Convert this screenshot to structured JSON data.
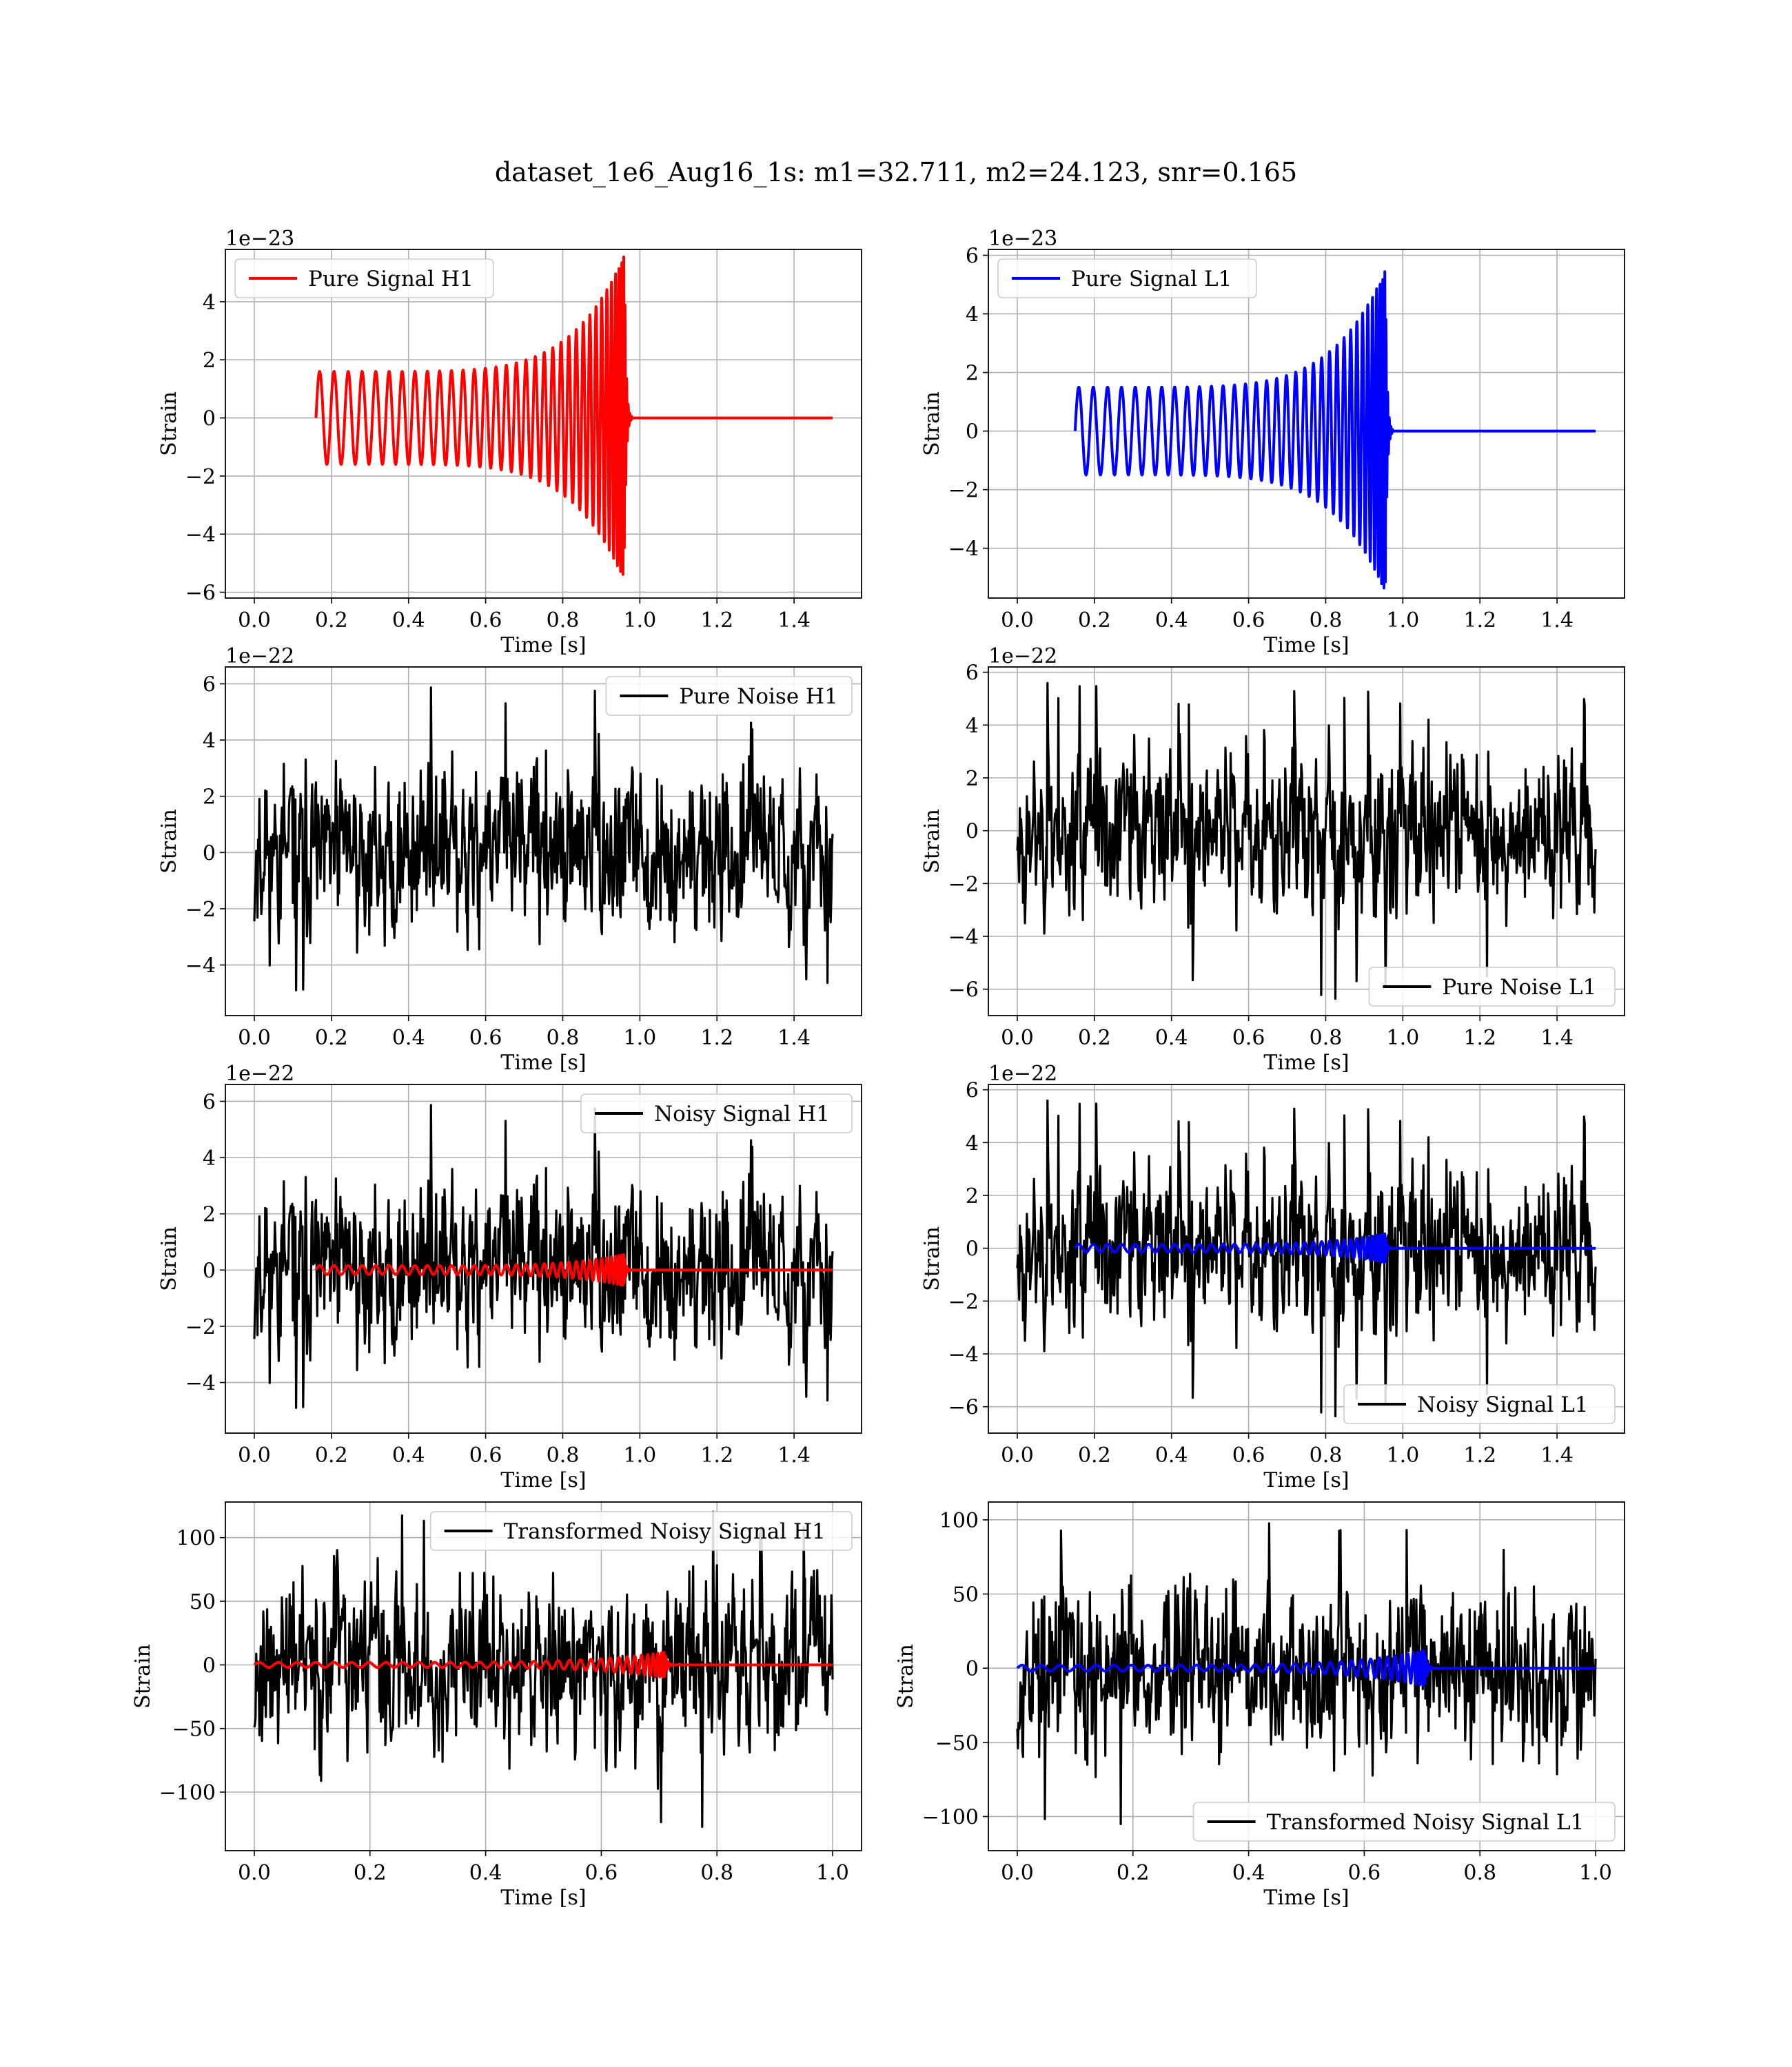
{
  "figure": {
    "title": "dataset_1e6_Aug16_1s: m1=32.711, m2=24.123, snr=0.165"
  },
  "chart_data": [
    {
      "type": "line",
      "panel": "pure-signal-h1",
      "xlabel": "Time [s]",
      "ylabel": "Strain",
      "offset_text": "1e−23",
      "xlim": [
        -0.075,
        1.575
      ],
      "ylim": [
        -6.2,
        5.8
      ],
      "xticks": [
        0.0,
        0.2,
        0.4,
        0.6,
        0.8,
        1.0,
        1.2,
        1.4
      ],
      "xtick_labels": [
        "0.0",
        "0.2",
        "0.4",
        "0.6",
        "0.8",
        "1.0",
        "1.2",
        "1.4"
      ],
      "yticks": [
        -6,
        -4,
        -2,
        0,
        2,
        4
      ],
      "ytick_labels": [
        "−6",
        "−4",
        "−2",
        "0",
        "2",
        "4"
      ],
      "grid": true,
      "legend_position": "upper left",
      "series": [
        {
          "name": "Pure Signal H1",
          "color": "#ff0000",
          "kind": "chirp",
          "t_start": 0.16,
          "t_merge": 0.96,
          "t_end": 1.5,
          "amp_start": 1.6,
          "amp_peak": 5.6,
          "cycles": 34
        }
      ]
    },
    {
      "type": "line",
      "panel": "pure-signal-l1",
      "xlabel": "Time [s]",
      "ylabel": "Strain",
      "offset_text": "1e−23",
      "xlim": [
        -0.075,
        1.575
      ],
      "ylim": [
        -5.7,
        6.2
      ],
      "xticks": [
        0.0,
        0.2,
        0.4,
        0.6,
        0.8,
        1.0,
        1.2,
        1.4
      ],
      "xtick_labels": [
        "0.0",
        "0.2",
        "0.4",
        "0.6",
        "0.8",
        "1.0",
        "1.2",
        "1.4"
      ],
      "yticks": [
        -4,
        -2,
        0,
        2,
        4,
        6
      ],
      "ytick_labels": [
        "−4",
        "−2",
        "0",
        "2",
        "4",
        "6"
      ],
      "grid": true,
      "legend_position": "upper left",
      "series": [
        {
          "name": "Pure Signal L1",
          "color": "#0000ff",
          "kind": "chirp",
          "t_start": 0.15,
          "t_merge": 0.955,
          "t_end": 1.5,
          "amp_start": 1.5,
          "amp_peak": 5.5,
          "cycles": 34
        }
      ]
    },
    {
      "type": "line",
      "panel": "pure-noise-h1",
      "xlabel": "Time [s]",
      "ylabel": "Strain",
      "offset_text": "1e−22",
      "xlim": [
        -0.075,
        1.575
      ],
      "ylim": [
        -5.8,
        6.6
      ],
      "xticks": [
        0.0,
        0.2,
        0.4,
        0.6,
        0.8,
        1.0,
        1.2,
        1.4
      ],
      "xtick_labels": [
        "0.0",
        "0.2",
        "0.4",
        "0.6",
        "0.8",
        "1.0",
        "1.2",
        "1.4"
      ],
      "yticks": [
        -4,
        -2,
        0,
        2,
        4,
        6
      ],
      "ytick_labels": [
        "−4",
        "−2",
        "0",
        "2",
        "4",
        "6"
      ],
      "grid": true,
      "legend_position": "upper right",
      "series": [
        {
          "name": "Pure Noise H1",
          "color": "#000000",
          "kind": "noise",
          "t_start": 0.0,
          "t_end": 1.5,
          "noise_range": [
            -5.2,
            6.0
          ],
          "points": 900,
          "seed": 11
        }
      ]
    },
    {
      "type": "line",
      "panel": "pure-noise-l1",
      "xlabel": "Time [s]",
      "ylabel": "Strain",
      "offset_text": "1e−22",
      "xlim": [
        -0.075,
        1.575
      ],
      "ylim": [
        -7.0,
        6.2
      ],
      "xticks": [
        0.0,
        0.2,
        0.4,
        0.6,
        0.8,
        1.0,
        1.2,
        1.4
      ],
      "xtick_labels": [
        "0.0",
        "0.2",
        "0.4",
        "0.6",
        "0.8",
        "1.0",
        "1.2",
        "1.4"
      ],
      "yticks": [
        -6,
        -4,
        -2,
        0,
        2,
        4,
        6
      ],
      "ytick_labels": [
        "−6",
        "−4",
        "−2",
        "0",
        "2",
        "4",
        "6"
      ],
      "grid": true,
      "legend_position": "lower right",
      "series": [
        {
          "name": "Pure Noise L1",
          "color": "#000000",
          "kind": "noise",
          "t_start": 0.0,
          "t_end": 1.5,
          "noise_range": [
            -6.4,
            5.6
          ],
          "points": 900,
          "seed": 23
        }
      ]
    },
    {
      "type": "line",
      "panel": "noisy-signal-h1",
      "xlabel": "Time [s]",
      "ylabel": "Strain",
      "offset_text": "1e−22",
      "xlim": [
        -0.075,
        1.575
      ],
      "ylim": [
        -5.8,
        6.6
      ],
      "xticks": [
        0.0,
        0.2,
        0.4,
        0.6,
        0.8,
        1.0,
        1.2,
        1.4
      ],
      "xtick_labels": [
        "0.0",
        "0.2",
        "0.4",
        "0.6",
        "0.8",
        "1.0",
        "1.2",
        "1.4"
      ],
      "yticks": [
        -4,
        -2,
        0,
        2,
        4,
        6
      ],
      "ytick_labels": [
        "−4",
        "−2",
        "0",
        "2",
        "4",
        "6"
      ],
      "grid": true,
      "legend_position": "upper right",
      "series": [
        {
          "name": "Noisy Signal H1",
          "color": "#000000",
          "kind": "noise",
          "t_start": 0.0,
          "t_end": 1.5,
          "noise_range": [
            -5.2,
            6.0
          ],
          "points": 900,
          "seed": 11
        },
        {
          "color": "#ff0000",
          "kind": "chirp",
          "t_start": 0.16,
          "t_merge": 0.96,
          "t_end": 1.5,
          "amp_start": 0.16,
          "amp_peak": 0.56,
          "cycles": 34
        }
      ]
    },
    {
      "type": "line",
      "panel": "noisy-signal-l1",
      "xlabel": "Time [s]",
      "ylabel": "Strain",
      "offset_text": "1e−22",
      "xlim": [
        -0.075,
        1.575
      ],
      "ylim": [
        -7.0,
        6.2
      ],
      "xticks": [
        0.0,
        0.2,
        0.4,
        0.6,
        0.8,
        1.0,
        1.2,
        1.4
      ],
      "xtick_labels": [
        "0.0",
        "0.2",
        "0.4",
        "0.6",
        "0.8",
        "1.0",
        "1.2",
        "1.4"
      ],
      "yticks": [
        -6,
        -4,
        -2,
        0,
        2,
        4,
        6
      ],
      "ytick_labels": [
        "−6",
        "−4",
        "−2",
        "0",
        "2",
        "4",
        "6"
      ],
      "grid": true,
      "legend_position": "lower right",
      "series": [
        {
          "name": "Noisy Signal L1",
          "color": "#000000",
          "kind": "noise",
          "t_start": 0.0,
          "t_end": 1.5,
          "noise_range": [
            -6.4,
            5.6
          ],
          "points": 900,
          "seed": 23
        },
        {
          "color": "#0000ff",
          "kind": "chirp",
          "t_start": 0.15,
          "t_merge": 0.955,
          "t_end": 1.5,
          "amp_start": 0.15,
          "amp_peak": 0.55,
          "cycles": 34
        }
      ]
    },
    {
      "type": "line",
      "panel": "transformed-noisy-signal-h1",
      "xlabel": "Time [s]",
      "ylabel": "Strain",
      "offset_text": "",
      "xlim": [
        -0.05,
        1.05
      ],
      "ylim": [
        -146,
        128
      ],
      "xticks": [
        0.0,
        0.2,
        0.4,
        0.6,
        0.8,
        1.0
      ],
      "xtick_labels": [
        "0.0",
        "0.2",
        "0.4",
        "0.6",
        "0.8",
        "1.0"
      ],
      "yticks": [
        -100,
        -50,
        0,
        50,
        100
      ],
      "ytick_labels": [
        "−100",
        "−50",
        "0",
        "50",
        "100"
      ],
      "grid": true,
      "legend_position": "upper right",
      "series": [
        {
          "name": "Transformed Noisy Signal H1",
          "color": "#000000",
          "kind": "noise",
          "t_start": 0.0,
          "t_end": 1.0,
          "noise_range": [
            -135,
            122
          ],
          "points": 900,
          "seed": 37
        },
        {
          "color": "#ff0000",
          "kind": "chirp",
          "t_start": 0.0,
          "t_merge": 0.71,
          "t_end": 1.0,
          "amp_start": 2,
          "amp_peak": 10,
          "cycles": 34
        }
      ]
    },
    {
      "type": "line",
      "panel": "transformed-noisy-signal-l1",
      "xlabel": "Time [s]",
      "ylabel": "Strain",
      "offset_text": "",
      "xlim": [
        -0.05,
        1.05
      ],
      "ylim": [
        -123,
        112
      ],
      "xticks": [
        0.0,
        0.2,
        0.4,
        0.6,
        0.8,
        1.0
      ],
      "xtick_labels": [
        "0.0",
        "0.2",
        "0.4",
        "0.6",
        "0.8",
        "1.0"
      ],
      "yticks": [
        -100,
        -50,
        0,
        50,
        100
      ],
      "ytick_labels": [
        "−100",
        "−50",
        "0",
        "50",
        "100"
      ],
      "grid": true,
      "legend_position": "lower right",
      "series": [
        {
          "name": "Transformed Noisy Signal L1",
          "color": "#000000",
          "kind": "noise",
          "t_start": 0.0,
          "t_end": 1.0,
          "noise_range": [
            -112,
            103
          ],
          "points": 900,
          "seed": 53
        },
        {
          "color": "#0000ff",
          "kind": "chirp",
          "t_start": 0.0,
          "t_merge": 0.705,
          "t_end": 1.0,
          "amp_start": 2,
          "amp_peak": 12,
          "cycles": 34
        }
      ]
    }
  ]
}
